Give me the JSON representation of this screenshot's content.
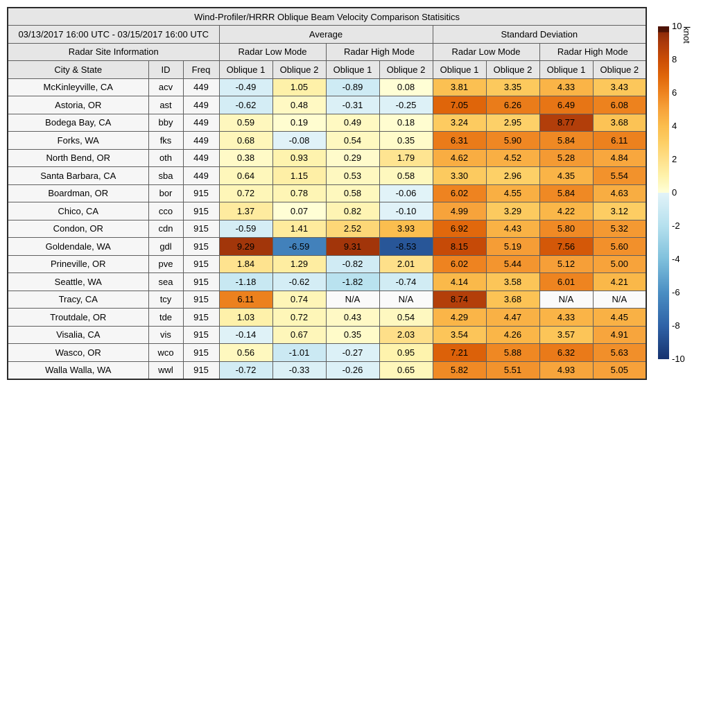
{
  "table": {
    "title": "Wind-Profiler/HRRR Oblique Beam Velocity Comparison Statisitics",
    "date_range": "03/13/2017 16:00 UTC - 03/15/2017 16:00 UTC",
    "group_headers": {
      "average": "Average",
      "standard_deviation": "Standard Deviation",
      "radar_site_information": "Radar Site Information",
      "radar_low_mode": "Radar Low Mode",
      "radar_high_mode": "Radar High Mode"
    },
    "col_headers": {
      "city": "City & State",
      "id": "ID",
      "freq": "Freq",
      "oblique1": "Oblique 1",
      "oblique2": "Oblique 2"
    },
    "na_label": "N/A"
  },
  "chart_data": {
    "type": "table",
    "title": "Wind-Profiler/HRRR Oblique Beam Velocity Comparison Statisitics",
    "subtitle": "03/13/2017 16:00 UTC - 03/15/2017 16:00 UTC",
    "value_unit": "knot",
    "value_range": [
      -10,
      10
    ],
    "column_groups": [
      "Radar Site Information",
      "Average Radar Low Mode",
      "Average Radar High Mode",
      "Standard Deviation Radar Low Mode",
      "Standard Deviation Radar High Mode"
    ],
    "columns": [
      "City & State",
      "ID",
      "Freq",
      "Avg Low Oblique 1",
      "Avg Low Oblique 2",
      "Avg High Oblique 1",
      "Avg High Oblique 2",
      "Std Low Oblique 1",
      "Std Low Oblique 2",
      "Std High Oblique 1",
      "Std High Oblique 2"
    ],
    "rows": [
      {
        "city": "McKinleyville, CA",
        "id": "acv",
        "freq": 449,
        "avg": [
          -0.49,
          1.05,
          -0.89,
          0.08
        ],
        "std": [
          3.81,
          3.35,
          4.33,
          3.43
        ]
      },
      {
        "city": "Astoria, OR",
        "id": "ast",
        "freq": 449,
        "avg": [
          -0.62,
          0.48,
          -0.31,
          -0.25
        ],
        "std": [
          7.05,
          6.26,
          6.49,
          6.08
        ]
      },
      {
        "city": "Bodega Bay, CA",
        "id": "bby",
        "freq": 449,
        "avg": [
          0.59,
          0.19,
          0.49,
          0.18
        ],
        "std": [
          3.24,
          2.95,
          8.77,
          3.68
        ]
      },
      {
        "city": "Forks, WA",
        "id": "fks",
        "freq": 449,
        "avg": [
          0.68,
          -0.08,
          0.54,
          0.35
        ],
        "std": [
          6.31,
          5.9,
          5.84,
          6.11
        ]
      },
      {
        "city": "North Bend, OR",
        "id": "oth",
        "freq": 449,
        "avg": [
          0.38,
          0.93,
          0.29,
          1.79
        ],
        "std": [
          4.62,
          4.52,
          5.28,
          4.84
        ]
      },
      {
        "city": "Santa Barbara, CA",
        "id": "sba",
        "freq": 449,
        "avg": [
          0.64,
          1.15,
          0.53,
          0.58
        ],
        "std": [
          3.3,
          2.96,
          4.35,
          5.54
        ]
      },
      {
        "city": "Boardman, OR",
        "id": "bor",
        "freq": 915,
        "avg": [
          0.72,
          0.78,
          0.58,
          -0.06
        ],
        "std": [
          6.02,
          4.55,
          5.84,
          4.63
        ]
      },
      {
        "city": "Chico, CA",
        "id": "cco",
        "freq": 915,
        "avg": [
          1.37,
          0.07,
          0.82,
          -0.1
        ],
        "std": [
          4.99,
          3.29,
          4.22,
          3.12
        ]
      },
      {
        "city": "Condon, OR",
        "id": "cdn",
        "freq": 915,
        "avg": [
          -0.59,
          1.41,
          2.52,
          3.93
        ],
        "std": [
          6.92,
          4.43,
          5.8,
          5.32
        ]
      },
      {
        "city": "Goldendale, WA",
        "id": "gdl",
        "freq": 915,
        "avg": [
          9.29,
          -6.59,
          9.31,
          -8.53
        ],
        "std": [
          8.15,
          5.19,
          7.56,
          5.6
        ]
      },
      {
        "city": "Prineville, OR",
        "id": "pve",
        "freq": 915,
        "avg": [
          1.84,
          1.29,
          -0.82,
          2.01
        ],
        "std": [
          6.02,
          5.44,
          5.12,
          5.0
        ]
      },
      {
        "city": "Seattle, WA",
        "id": "sea",
        "freq": 915,
        "avg": [
          -1.18,
          -0.62,
          -1.82,
          -0.74
        ],
        "std": [
          4.14,
          3.58,
          6.01,
          4.21
        ]
      },
      {
        "city": "Tracy, CA",
        "id": "tcy",
        "freq": 915,
        "avg": [
          6.11,
          0.74,
          null,
          null
        ],
        "std": [
          8.74,
          3.68,
          null,
          null
        ]
      },
      {
        "city": "Troutdale, OR",
        "id": "tde",
        "freq": 915,
        "avg": [
          1.03,
          0.72,
          0.43,
          0.54
        ],
        "std": [
          4.29,
          4.47,
          4.33,
          4.45
        ]
      },
      {
        "city": "Visalia, CA",
        "id": "vis",
        "freq": 915,
        "avg": [
          -0.14,
          0.67,
          0.35,
          2.03
        ],
        "std": [
          3.54,
          4.26,
          3.57,
          4.91
        ]
      },
      {
        "city": "Wasco, OR",
        "id": "wco",
        "freq": 915,
        "avg": [
          0.56,
          -1.01,
          -0.27,
          0.95
        ],
        "std": [
          7.21,
          5.88,
          6.32,
          5.63
        ]
      },
      {
        "city": "Walla Walla, WA",
        "id": "wwl",
        "freq": 915,
        "avg": [
          -0.72,
          -0.33,
          -0.26,
          0.65
        ],
        "std": [
          5.82,
          5.51,
          4.93,
          5.05
        ]
      }
    ]
  },
  "colorbar": {
    "label": "knot",
    "min": -10,
    "max": 10,
    "ticks": [
      10,
      8,
      6,
      4,
      2,
      0,
      -2,
      -4,
      -6,
      -8,
      -10
    ],
    "cap_color": "#4e1305",
    "na_bg": "#fafafa",
    "colormap": [
      [
        -10,
        "#16336f"
      ],
      [
        -8,
        "#2f63a7"
      ],
      [
        -6,
        "#4a8ec3"
      ],
      [
        -4,
        "#7fc0dc"
      ],
      [
        -2,
        "#b5e0ee"
      ],
      [
        -0.01,
        "#e2f3f8"
      ],
      [
        0.01,
        "#ffffd8"
      ],
      [
        1,
        "#fef2ab"
      ],
      [
        2,
        "#fee08a"
      ],
      [
        3,
        "#fdcf66"
      ],
      [
        4,
        "#fbbd4d"
      ],
      [
        5,
        "#f7a33b"
      ],
      [
        6,
        "#ee8420"
      ],
      [
        7,
        "#e0660a"
      ],
      [
        8,
        "#cb4d06"
      ],
      [
        9,
        "#ab3a0b"
      ],
      [
        10,
        "#8d2b09"
      ]
    ]
  }
}
